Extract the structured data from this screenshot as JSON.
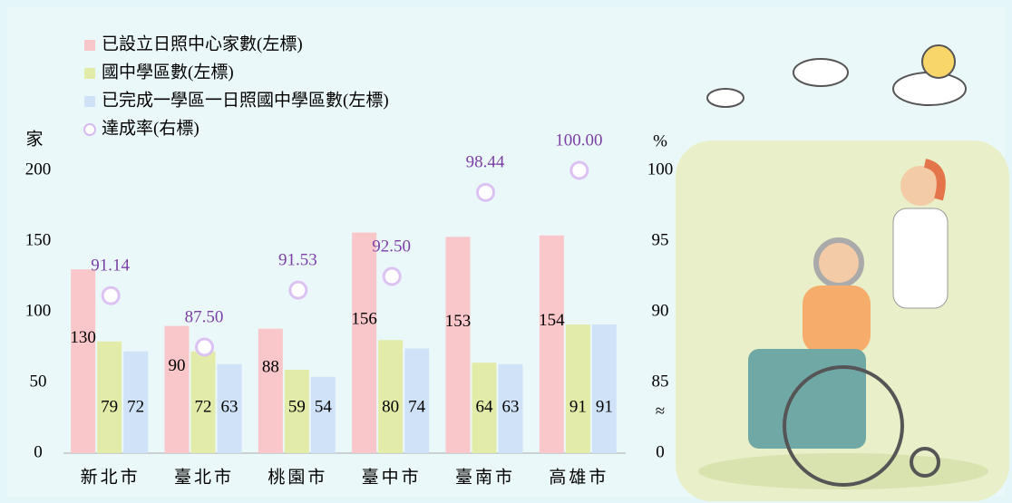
{
  "chart_data": {
    "type": "bar",
    "categories": [
      "新北市",
      "臺北市",
      "桃園市",
      "臺中市",
      "臺南市",
      "高雄市"
    ],
    "series": [
      {
        "name": "已設立日照中心家數(左標)",
        "color": "#f9c6ca",
        "values": [
          130,
          90,
          88,
          156,
          153,
          154
        ]
      },
      {
        "name": "國中學區數(左標)",
        "color": "#e3eba9",
        "values": [
          79,
          72,
          59,
          80,
          64,
          91
        ]
      },
      {
        "name": "已完成一學區一日照國中學區數(左標)",
        "color": "#cfe2f7",
        "values": [
          72,
          63,
          54,
          74,
          63,
          91
        ]
      },
      {
        "name": "達成率(右標)",
        "type": "scatter",
        "axis": "y2",
        "color": "#7b3fa5",
        "values": [
          91.14,
          87.5,
          91.53,
          92.5,
          98.44,
          100
        ],
        "value_labels": [
          "91.14",
          "87.50",
          "91.53",
          "92.50",
          "98.44",
          "100.00"
        ]
      }
    ],
    "ylabel": "家",
    "y2label": "%",
    "axis_break": "≈",
    "ylim": [
      0,
      200
    ],
    "yticks": [
      0,
      50,
      100,
      150,
      200
    ],
    "y2lim": [
      80,
      100
    ],
    "y2ticks": [
      {
        "value": 80,
        "label": "0"
      },
      85,
      90,
      95,
      100
    ]
  }
}
